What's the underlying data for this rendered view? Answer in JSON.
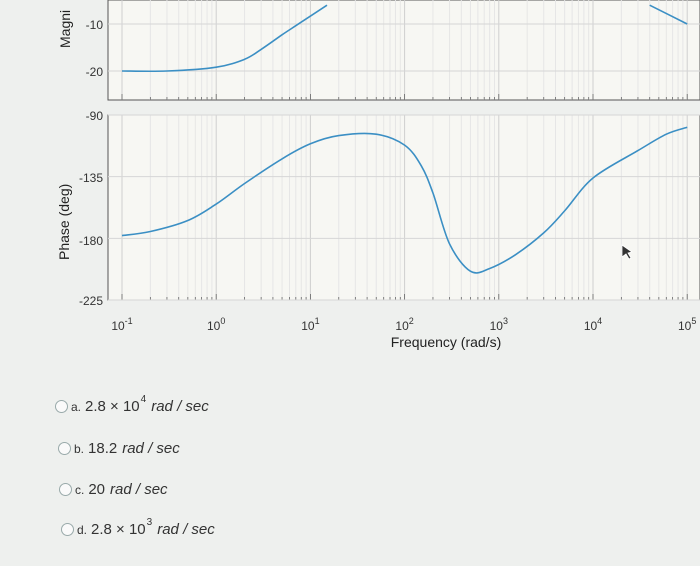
{
  "figure": {
    "magnitude_axis_label_partial": "Magni",
    "phase_axis_label": "Phase (deg)",
    "x_axis_label": "Frequency (rad/s)",
    "magnitude_ticks": [
      "-10",
      "-20"
    ],
    "phase_ticks": [
      "-90",
      "-135",
      "-180",
      "-225"
    ],
    "x_ticks": [
      {
        "base": "10",
        "exp": "-1"
      },
      {
        "base": "10",
        "exp": "0"
      },
      {
        "base": "10",
        "exp": "1"
      },
      {
        "base": "10",
        "exp": "2"
      },
      {
        "base": "10",
        "exp": "3"
      },
      {
        "base": "10",
        "exp": "4"
      },
      {
        "base": "10",
        "exp": "5"
      }
    ],
    "line_color": "#3b8fc4"
  },
  "chart_data": [
    {
      "type": "line",
      "title": "",
      "xlabel": "",
      "ylabel": "Magni",
      "x_scale": "log",
      "ylim_visible": [
        -22,
        -7
      ],
      "series": [
        {
          "x": [
            0.1,
            0.3,
            1,
            2,
            3,
            5,
            8,
            15
          ],
          "values": [
            -20,
            -20,
            -19.2,
            -17.5,
            -15.4,
            -12.3,
            -9.6,
            -6
          ]
        },
        {
          "x": [
            40000,
            100000
          ],
          "values": [
            -6,
            -10
          ]
        }
      ]
    },
    {
      "type": "line",
      "title": "",
      "xlabel": "Frequency (rad/s)",
      "ylabel": "Phase (deg)",
      "x_scale": "log",
      "xlim": [
        0.1,
        100000
      ],
      "ylim": [
        -225,
        -90
      ],
      "series": [
        {
          "x": [
            0.1,
            0.2,
            0.5,
            1,
            2,
            5,
            10,
            20,
            50,
            100,
            150,
            200,
            300,
            500,
            800,
            1500,
            3000,
            5000,
            10000,
            30000,
            60000,
            100000
          ],
          "values": [
            -178,
            -175,
            -167,
            -155,
            -140,
            -122,
            -111,
            -105,
            -104,
            -112,
            -127,
            -147,
            -184,
            -204,
            -202,
            -192,
            -176,
            -160,
            -136,
            -116,
            -104,
            -99
          ]
        }
      ]
    }
  ],
  "question": {
    "options": [
      {
        "letter": "a.",
        "prefix": "2.8 × 10",
        "exp": "4",
        "unit": "rad / sec"
      },
      {
        "letter": "b.",
        "prefix": "18.2",
        "exp": "",
        "unit": "rad / sec"
      },
      {
        "letter": "c.",
        "prefix": "20",
        "exp": "",
        "unit": "rad / sec"
      },
      {
        "letter": "d.",
        "prefix": "2.8 × 10",
        "exp": "3",
        "unit": "rad / sec"
      }
    ]
  }
}
